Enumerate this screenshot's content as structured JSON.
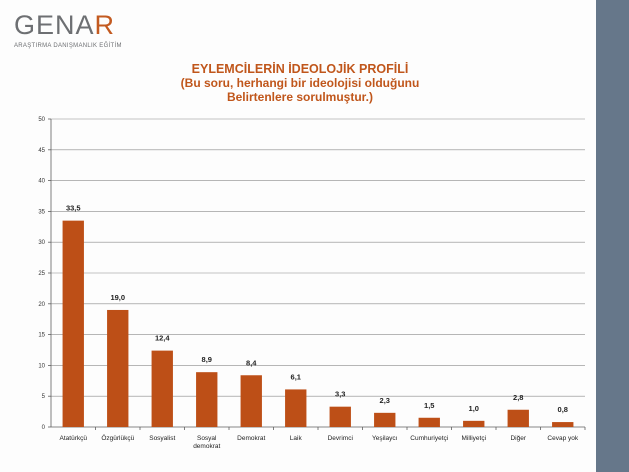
{
  "logo": {
    "name_main": "GENA",
    "name_accent": "R",
    "tagline": "ARAŞTIRMA DANIŞMANLIK EĞİTİM"
  },
  "colors": {
    "bar": "#bd4f17",
    "title": "#c0561b",
    "side_bar": "#66778a"
  },
  "chart_data": {
    "type": "bar",
    "title": "EYLEMCİLERİN İDEOLOJİK PROFİLİ",
    "subtitle_lines": [
      "(Bu soru, herhangi bir ideolojisi olduğunu",
      "Belirtenlere sorulmuştur.)"
    ],
    "xlabel": "",
    "ylabel": "",
    "ylim": [
      0,
      50
    ],
    "yticks": [
      0,
      5,
      10,
      15,
      20,
      25,
      30,
      35,
      40,
      45,
      50
    ],
    "grid": true,
    "categories": [
      [
        "Atatürkçü"
      ],
      [
        "Özgürlükçü"
      ],
      [
        "Sosyalist"
      ],
      [
        "Sosyal",
        "demokrat"
      ],
      [
        "Demokrat"
      ],
      [
        "Laik"
      ],
      [
        "Devrimci"
      ],
      [
        "Yeşilaycı"
      ],
      [
        "Cumhuriyetçi"
      ],
      [
        "Milliyetçi"
      ],
      [
        "Diğer"
      ],
      [
        "Cevap yok"
      ]
    ],
    "values": [
      33.5,
      19.0,
      12.4,
      8.9,
      8.4,
      6.1,
      3.3,
      2.3,
      1.5,
      1.0,
      2.8,
      0.8
    ],
    "value_labels": [
      "33,5",
      "19,0",
      "12,4",
      "8,9",
      "8,4",
      "6,1",
      "3,3",
      "2,3",
      "1,5",
      "1,0",
      "2,8",
      "0,8"
    ]
  }
}
